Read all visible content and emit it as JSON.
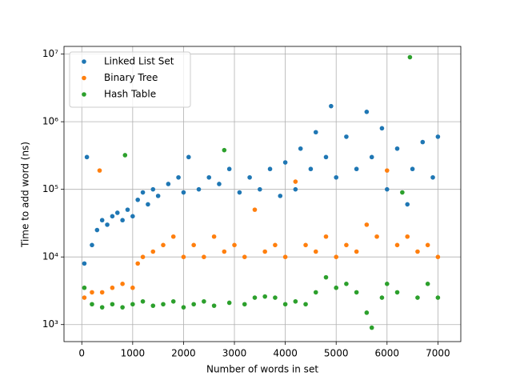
{
  "chart_data": {
    "type": "scatter",
    "xlabel": "Number of words in set",
    "ylabel": "Time to add word (ns)",
    "log_y": true,
    "grid": true,
    "legend": "upper-left",
    "xlim": [
      -350,
      7450
    ],
    "ylim": [
      560,
      13000000
    ],
    "xticks": [
      0,
      1000,
      2000,
      3000,
      4000,
      5000,
      6000,
      7000
    ],
    "yticks": [
      {
        "value": 1000,
        "label": "10³"
      },
      {
        "value": 10000,
        "label": "10⁴"
      },
      {
        "value": 100000,
        "label": "10⁵"
      },
      {
        "value": 1000000,
        "label": "10⁶"
      },
      {
        "value": 10000000,
        "label": "10⁷"
      }
    ],
    "series": [
      {
        "name": "Linked List Set",
        "color": "#1f77b4",
        "x": [
          50,
          100,
          200,
          300,
          400,
          500,
          600,
          700,
          800,
          900,
          1000,
          1100,
          1200,
          1300,
          1400,
          1500,
          1700,
          1900,
          2000,
          2100,
          2300,
          2500,
          2700,
          2900,
          3100,
          3300,
          3500,
          3700,
          3900,
          4000,
          4200,
          4300,
          4500,
          4600,
          4800,
          4900,
          5000,
          5200,
          5400,
          5600,
          5700,
          5900,
          6000,
          6200,
          6400,
          6500,
          6700,
          6900,
          7000
        ],
        "values": [
          8000,
          300000,
          15000,
          25000,
          35000,
          30000,
          40000,
          45000,
          35000,
          50000,
          40000,
          70000,
          90000,
          60000,
          100000,
          80000,
          120000,
          150000,
          90000,
          300000,
          100000,
          150000,
          120000,
          200000,
          90000,
          150000,
          100000,
          200000,
          80000,
          250000,
          100000,
          400000,
          200000,
          700000,
          300000,
          1700000,
          150000,
          600000,
          200000,
          1400000,
          300000,
          800000,
          100000,
          400000,
          60000,
          200000,
          500000,
          150000,
          600000
        ]
      },
      {
        "name": "Binary Tree",
        "color": "#ff7f0e",
        "x": [
          50,
          200,
          350,
          400,
          600,
          800,
          1000,
          1100,
          1200,
          1400,
          1600,
          1800,
          2000,
          2200,
          2400,
          2600,
          2800,
          3000,
          3200,
          3400,
          3600,
          3800,
          4000,
          4200,
          4400,
          4600,
          4800,
          5000,
          5200,
          5400,
          5600,
          5800,
          6000,
          6200,
          6400,
          6600,
          6800,
          7000
        ],
        "values": [
          2500,
          3000,
          190000,
          3000,
          3500,
          4000,
          3500,
          8000,
          10000,
          12000,
          15000,
          20000,
          10000,
          15000,
          10000,
          20000,
          12000,
          15000,
          10000,
          50000,
          12000,
          15000,
          10000,
          130000,
          15000,
          12000,
          20000,
          10000,
          15000,
          12000,
          30000,
          20000,
          190000,
          15000,
          20000,
          12000,
          15000,
          10000
        ]
      },
      {
        "name": "Hash Table",
        "color": "#2ca02c",
        "x": [
          50,
          200,
          400,
          600,
          800,
          850,
          1000,
          1200,
          1400,
          1600,
          1800,
          2000,
          2200,
          2400,
          2600,
          2800,
          2900,
          3200,
          3400,
          3600,
          3800,
          4000,
          4200,
          4400,
          4600,
          4800,
          5000,
          5200,
          5400,
          5600,
          5700,
          5900,
          6000,
          6200,
          6300,
          6450,
          6600,
          6800,
          7000
        ],
        "values": [
          3500,
          2000,
          1800,
          2000,
          1800,
          320000,
          2000,
          2200,
          1900,
          2000,
          2200,
          1800,
          2000,
          2200,
          1900,
          380000,
          2100,
          2000,
          2500,
          2600,
          2500,
          2000,
          2200,
          2000,
          3000,
          5000,
          3500,
          4000,
          3000,
          1500,
          900,
          2500,
          4000,
          3000,
          90000,
          9000000,
          2500,
          4000,
          2500
        ]
      }
    ]
  }
}
